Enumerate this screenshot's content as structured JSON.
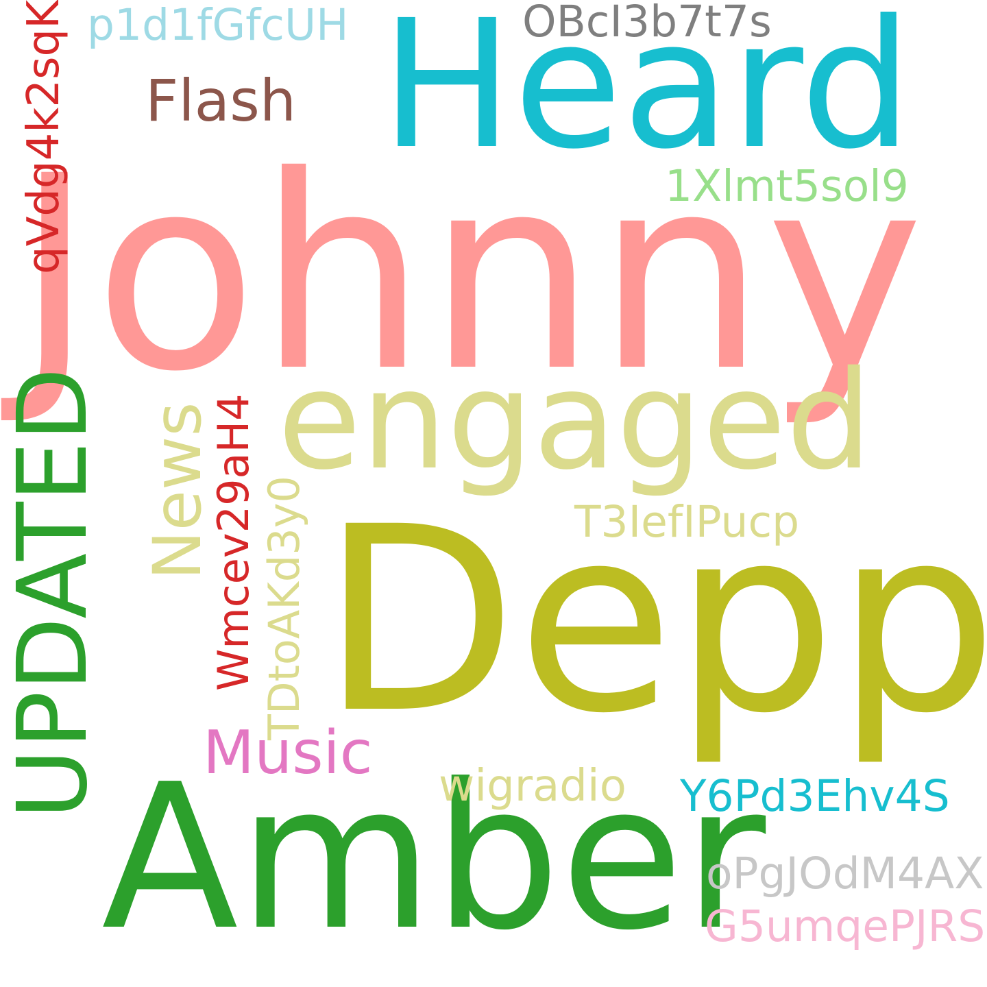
{
  "words": {
    "johnny": {
      "text": "Johnny",
      "color": "#ff9896"
    },
    "heard": {
      "text": "Heard",
      "color": "#17becf"
    },
    "depp": {
      "text": "Depp",
      "color": "#bcbd22"
    },
    "amber": {
      "text": "Amber",
      "color": "#2ca02c"
    },
    "engaged": {
      "text": "engaged",
      "color": "#dbdb8d"
    },
    "updated": {
      "text": "UPDATED",
      "color": "#2ca02c"
    },
    "news": {
      "text": "News",
      "color": "#dbdb8d"
    },
    "flash": {
      "text": "Flash",
      "color": "#8c564b"
    },
    "music": {
      "text": "Music",
      "color": "#e377c2"
    },
    "wigradio": {
      "text": "wigradio",
      "color": "#dbdb8d"
    },
    "w1": {
      "text": "p1d1fGfcUH",
      "color": "#9edae5"
    },
    "w2": {
      "text": "OBcI3b7t7s",
      "color": "#7f7f7f"
    },
    "w3": {
      "text": "qVdg4k2sqK",
      "color": "#d62728"
    },
    "w4": {
      "text": "1Xlmt5sol9",
      "color": "#98df8a"
    },
    "w5": {
      "text": "Wmcev29aH4",
      "color": "#d62728"
    },
    "w6": {
      "text": "TDtoAKd3y0",
      "color": "#dbdb8d"
    },
    "w7": {
      "text": "T3IefIPucp",
      "color": "#dbdb8d"
    },
    "w8": {
      "text": "Y6Pd3Ehv4S",
      "color": "#17becf"
    },
    "w9": {
      "text": "oPgJOdM4AX",
      "color": "#c7c7c7"
    },
    "w10": {
      "text": "G5umqePJRS",
      "color": "#f7b6d2"
    }
  }
}
